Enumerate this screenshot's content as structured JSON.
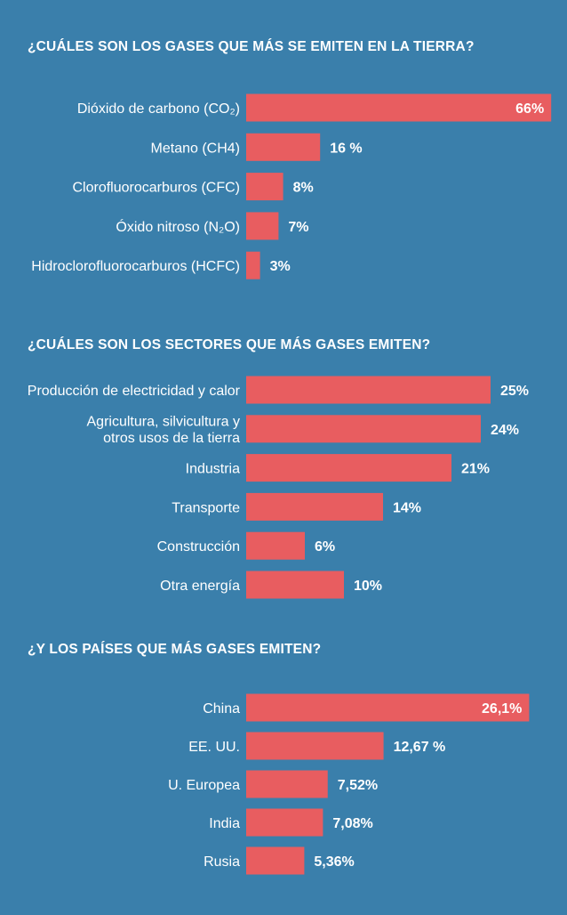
{
  "chart_data": [
    {
      "type": "bar",
      "orientation": "horizontal",
      "title": "¿CUÁLES SON LOS GASES QUE MÁS SE EMITEN EN LA TIERRA?",
      "categories": [
        "Dióxido de carbono (CO₂)",
        "Metano (CH4)",
        "Clorofluorocarburos (CFC)",
        "Óxido nitroso (N₂O)",
        "Hidroclorofluorocarburos (HCFC)"
      ],
      "values": [
        66,
        16,
        8,
        7,
        3
      ],
      "value_labels": [
        "66%",
        "16 %",
        "8%",
        "7%",
        "3%"
      ],
      "unit": "%",
      "bar_color": "#e85d60"
    },
    {
      "type": "bar",
      "orientation": "horizontal",
      "title": "¿CUÁLES SON LOS SECTORES QUE MÁS GASES EMITEN?",
      "categories": [
        "Producción de electricidad y calor",
        "Agricultura, silvicultura y otros usos de la tierra",
        "Industria",
        "Transporte",
        "Construcción",
        "Otra energía"
      ],
      "category_lines": [
        [
          "Producción de electricidad y calor"
        ],
        [
          "Agricultura, silvicultura y",
          "otros usos de la tierra"
        ],
        [
          "Industria"
        ],
        [
          "Transporte"
        ],
        [
          "Construcción"
        ],
        [
          "Otra energía"
        ]
      ],
      "values": [
        25,
        24,
        21,
        14,
        6,
        10
      ],
      "value_labels": [
        "25%",
        "24%",
        "21%",
        "14%",
        "6%",
        "10%"
      ],
      "unit": "%",
      "bar_color": "#e85d60"
    },
    {
      "type": "bar",
      "orientation": "horizontal",
      "title": "¿Y LOS PAÍSES QUE MÁS GASES EMITEN?",
      "categories": [
        "China",
        "EE. UU.",
        "U. Europea",
        "India",
        "Rusia"
      ],
      "values": [
        26.1,
        12.67,
        7.52,
        7.08,
        5.36
      ],
      "value_labels": [
        "26,1%",
        "12,67 %",
        "7,52%",
        "7,08%",
        "5,36%"
      ],
      "unit": "%",
      "bar_color": "#e85d60"
    }
  ],
  "colors": {
    "background": "#3a7fab",
    "bar": "#e85d60",
    "text": "#ffffff"
  }
}
